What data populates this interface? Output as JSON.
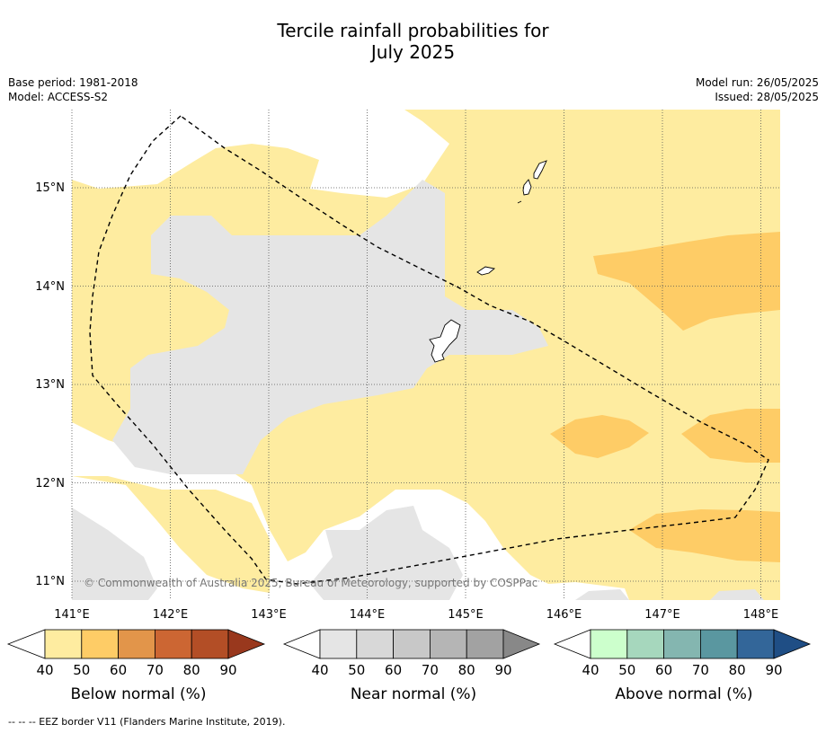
{
  "title": {
    "line1": "Tercile rainfall probabilities for",
    "line2": "July 2025"
  },
  "meta": {
    "base_period": "Base period: 1981-2018",
    "model": "Model: ACCESS-S2",
    "model_run": "Model run: 26/05/2025",
    "issued": "Issued: 28/05/2025"
  },
  "map": {
    "lon_range": [
      141,
      148.2
    ],
    "lat_range": [
      10.8,
      15.8
    ],
    "lon_ticks": [
      "141°E",
      "142°E",
      "143°E",
      "144°E",
      "145°E",
      "146°E",
      "147°E",
      "148°E"
    ],
    "lat_ticks": [
      "15°N",
      "14°N",
      "13°N",
      "12°N",
      "11°N"
    ],
    "copyright": "© Commonwealth of Australia 2025, Bureau of Meteorology, supported by COSPPac"
  },
  "colorbars": [
    {
      "title": "Below normal (%)",
      "ticks": [
        "40",
        "50",
        "60",
        "70",
        "80",
        "90"
      ],
      "colors": [
        "#ffffff",
        "#feeca0",
        "#fecc66",
        "#e2954a",
        "#cc6633",
        "#b34e26",
        "#99381d"
      ]
    },
    {
      "title": "Near normal (%)",
      "ticks": [
        "40",
        "50",
        "60",
        "70",
        "80",
        "90"
      ],
      "colors": [
        "#ffffff",
        "#e5e5e5",
        "#d8d8d8",
        "#c8c8c8",
        "#b5b5b5",
        "#a2a2a2",
        "#888888"
      ]
    },
    {
      "title": "Above normal (%)",
      "ticks": [
        "40",
        "50",
        "60",
        "70",
        "80",
        "90"
      ],
      "colors": [
        "#ffffff",
        "#ccffcc",
        "#a6d7bd",
        "#84b6b0",
        "#5a97a0",
        "#336699",
        "#1f4e85"
      ]
    }
  ],
  "footnote": "--  --  -- EEZ border V11 (Flanders Marine Institute, 2019)."
}
